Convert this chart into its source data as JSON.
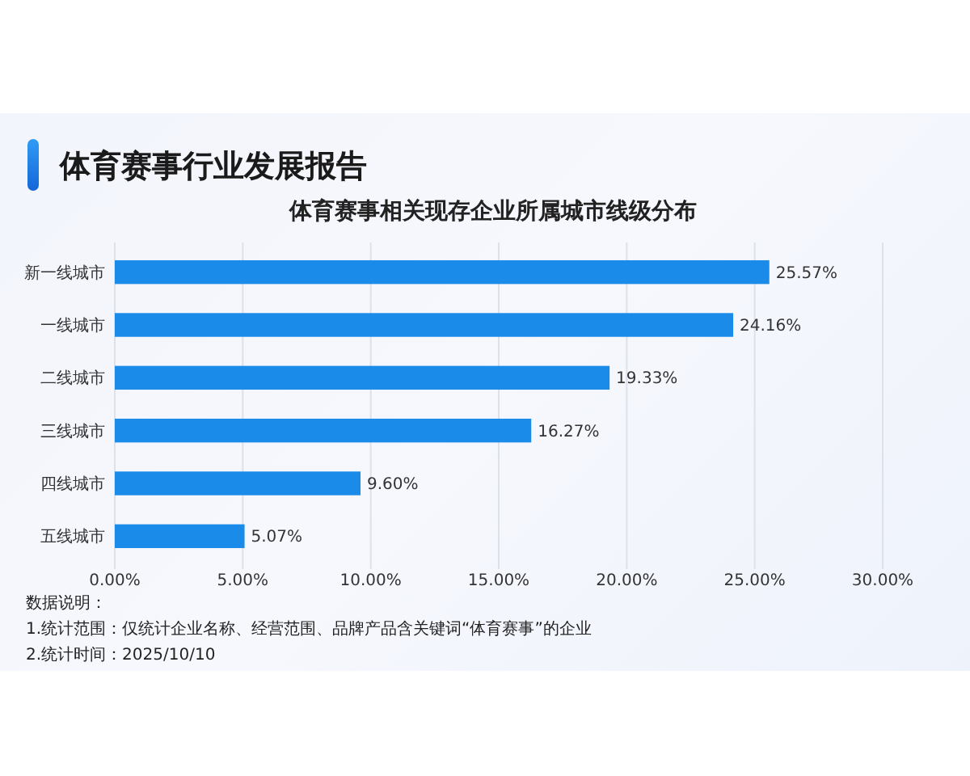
{
  "chart_data": {
    "type": "bar",
    "orientation": "horizontal",
    "title": "体育赛事行业发展报告",
    "subtitle": "体育赛事相关现存企业所属城市线级分布",
    "categories": [
      "新一线城市",
      "一线城市",
      "二线城市",
      "三线城市",
      "四线城市",
      "五线城市"
    ],
    "values": [
      25.57,
      24.16,
      19.33,
      16.27,
      9.6,
      5.07
    ],
    "value_labels": [
      "25.57%",
      "24.16%",
      "19.33%",
      "16.27%",
      "9.60%",
      "5.07%"
    ],
    "color": "#1a8be8",
    "xlim": [
      0,
      30
    ],
    "xticks": [
      {
        "value": 0,
        "label": "0.00%"
      },
      {
        "value": 5,
        "label": "5.00%"
      },
      {
        "value": 10,
        "label": "10.00%"
      },
      {
        "value": 15,
        "label": "15.00%"
      },
      {
        "value": 20,
        "label": "20.00%"
      },
      {
        "value": 25,
        "label": "25.00%"
      },
      {
        "value": 30,
        "label": "30.00%"
      }
    ],
    "grid": "x",
    "annotations": [
      "数据说明：",
      "1.统计范围：仅统计企业名称、经营范围、品牌产品含关键词“体育赛事”的企业",
      "2.统计时间：2025/10/10"
    ]
  }
}
